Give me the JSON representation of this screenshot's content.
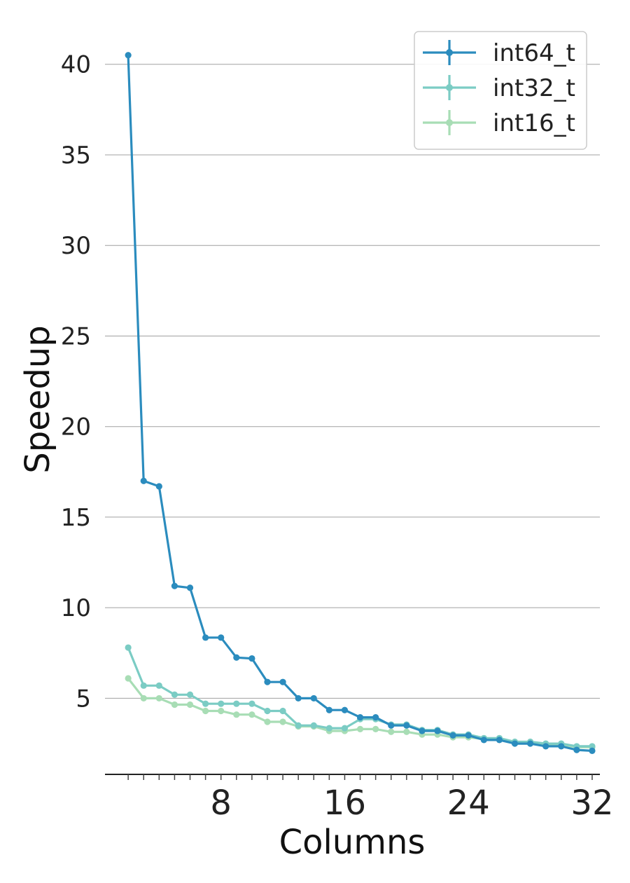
{
  "chart_data": {
    "type": "line",
    "xlabel": "Columns",
    "ylabel": "Speedup",
    "xlim": [
      0.5,
      32.5
    ],
    "ylim": [
      0.8,
      42
    ],
    "x_ticks": [
      8,
      16,
      24,
      32
    ],
    "x_minor_ticks": [
      2,
      3,
      4,
      5,
      6,
      7,
      8,
      9,
      10,
      11,
      12,
      13,
      14,
      15,
      16,
      17,
      18,
      19,
      20,
      21,
      22,
      23,
      24,
      25,
      26,
      27,
      28,
      29,
      30,
      31,
      32
    ],
    "y_ticks": [
      5,
      10,
      15,
      20,
      25,
      30,
      35,
      40
    ],
    "grid": "horizontal",
    "legend_position": "top-right",
    "x": [
      2,
      3,
      4,
      5,
      6,
      7,
      8,
      9,
      10,
      11,
      12,
      13,
      14,
      15,
      16,
      17,
      18,
      19,
      20,
      21,
      22,
      23,
      24,
      25,
      26,
      27,
      28,
      29,
      30,
      31,
      32
    ],
    "series": [
      {
        "name": "int64_t",
        "color": "#2b8cbe",
        "values": [
          40.5,
          17.0,
          16.7,
          11.2,
          11.1,
          8.35,
          8.35,
          7.25,
          7.2,
          5.9,
          5.9,
          5.0,
          5.0,
          4.35,
          4.35,
          3.95,
          3.95,
          3.5,
          3.5,
          3.2,
          3.2,
          2.95,
          2.95,
          2.7,
          2.7,
          2.5,
          2.5,
          2.35,
          2.35,
          2.15,
          2.1
        ]
      },
      {
        "name": "int32_t",
        "color": "#7bccc4",
        "values": [
          7.8,
          5.7,
          5.7,
          5.2,
          5.2,
          4.7,
          4.7,
          4.7,
          4.7,
          4.3,
          4.3,
          3.5,
          3.5,
          3.35,
          3.35,
          3.85,
          3.85,
          3.55,
          3.55,
          3.25,
          3.25,
          3.0,
          3.0,
          2.8,
          2.8,
          2.6,
          2.6,
          2.5,
          2.5,
          2.35,
          2.35
        ]
      },
      {
        "name": "int16_t",
        "color": "#a8ddb5",
        "values": [
          6.1,
          5.0,
          5.0,
          4.65,
          4.65,
          4.3,
          4.3,
          4.1,
          4.1,
          3.7,
          3.7,
          3.45,
          3.45,
          3.2,
          3.2,
          3.3,
          3.3,
          3.15,
          3.15,
          3.0,
          3.0,
          2.85,
          2.85,
          2.75,
          2.75,
          2.55,
          2.55,
          2.45,
          2.45,
          2.3,
          2.3
        ]
      }
    ]
  }
}
